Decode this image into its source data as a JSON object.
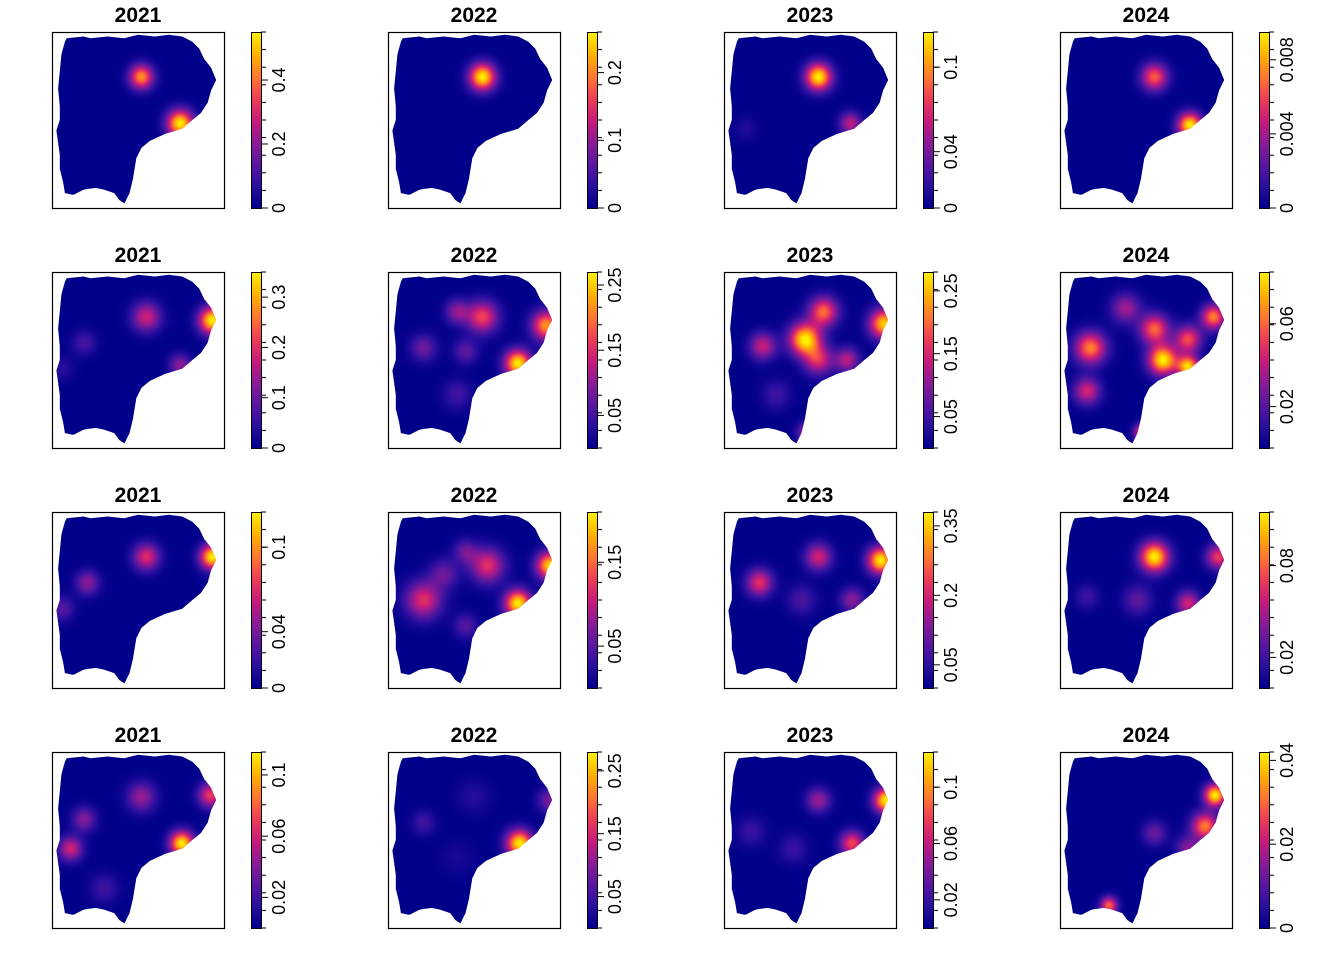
{
  "chart_data": {
    "type": "heatmap",
    "layout": {
      "rows": 4,
      "cols": 4
    },
    "colormap": [
      "#00008B",
      "#2B0FA0",
      "#5A189E",
      "#8E1A95",
      "#C81C7A",
      "#EF3F55",
      "#FF7A2E",
      "#FFB300",
      "#FFF000"
    ],
    "panels": [
      {
        "title": "2021",
        "max": 0.55,
        "ticks": [
          {
            "v": 0,
            "t": "0"
          },
          {
            "v": 0.2,
            "t": "0.2"
          },
          {
            "v": 0.4,
            "t": "0.4"
          }
        ],
        "hotspots": [
          [
            0.52,
            0.25,
            0.44,
            0.05
          ],
          [
            0.75,
            0.52,
            0.55,
            0.055
          ]
        ]
      },
      {
        "title": "2022",
        "max": 0.26,
        "ticks": [
          {
            "v": 0,
            "t": "0"
          },
          {
            "v": 0.1,
            "t": "0.1"
          },
          {
            "v": 0.2,
            "t": "0.2"
          }
        ],
        "hotspots": [
          [
            0.55,
            0.25,
            0.26,
            0.055
          ]
        ]
      },
      {
        "title": "2023",
        "max": 0.125,
        "ticks": [
          {
            "v": 0,
            "t": "0"
          },
          {
            "v": 0.04,
            "t": "0.04"
          },
          {
            "v": 0.1,
            "t": "0.1"
          }
        ],
        "hotspots": [
          [
            0.55,
            0.25,
            0.125,
            0.055
          ],
          [
            0.74,
            0.52,
            0.06,
            0.045
          ],
          [
            0.12,
            0.55,
            0.012,
            0.05
          ]
        ]
      },
      {
        "title": "2024",
        "max": 0.0095,
        "ticks": [
          {
            "v": 0,
            "t": "0"
          },
          {
            "v": 0.004,
            "t": "0.004"
          },
          {
            "v": 0.008,
            "t": "0.008"
          }
        ],
        "hotspots": [
          [
            0.55,
            0.25,
            0.0065,
            0.055
          ],
          [
            0.76,
            0.53,
            0.0095,
            0.05
          ]
        ]
      },
      {
        "title": "2021",
        "max": 0.35,
        "ticks": [
          {
            "v": 0,
            "t": "0"
          },
          {
            "v": 0.1,
            "t": "0.1"
          },
          {
            "v": 0.2,
            "t": "0.2"
          },
          {
            "v": 0.3,
            "t": "0.3"
          }
        ],
        "hotspots": [
          [
            0.55,
            0.25,
            0.18,
            0.06
          ],
          [
            0.94,
            0.27,
            0.35,
            0.055
          ],
          [
            0.75,
            0.53,
            0.13,
            0.045
          ],
          [
            0.18,
            0.4,
            0.07,
            0.05
          ],
          [
            0.05,
            0.55,
            0.04,
            0.05
          ]
        ]
      },
      {
        "title": "2022",
        "max": 0.27,
        "ticks": [
          {
            "v": 0.05,
            "t": "0.05"
          },
          {
            "v": 0.15,
            "t": "0.15"
          },
          {
            "v": 0.25,
            "t": "0.25"
          }
        ],
        "hotspots": [
          [
            0.55,
            0.25,
            0.17,
            0.065
          ],
          [
            0.4,
            0.22,
            0.1,
            0.05
          ],
          [
            0.93,
            0.3,
            0.22,
            0.06
          ],
          [
            0.76,
            0.52,
            0.27,
            0.055
          ],
          [
            0.2,
            0.43,
            0.08,
            0.055
          ],
          [
            0.45,
            0.45,
            0.07,
            0.05
          ],
          [
            0.4,
            0.7,
            0.05,
            0.06
          ]
        ]
      },
      {
        "title": "2023",
        "max": 0.28,
        "ticks": [
          {
            "v": 0.05,
            "t": "0.05"
          },
          {
            "v": 0.15,
            "t": "0.15"
          },
          {
            "v": 0.25,
            "t": "0.25"
          }
        ],
        "hotspots": [
          [
            0.47,
            0.38,
            0.28,
            0.065
          ],
          [
            0.58,
            0.22,
            0.2,
            0.06
          ],
          [
            0.55,
            0.5,
            0.15,
            0.06
          ],
          [
            0.94,
            0.29,
            0.26,
            0.06
          ],
          [
            0.72,
            0.5,
            0.13,
            0.05
          ],
          [
            0.22,
            0.42,
            0.14,
            0.055
          ],
          [
            0.48,
            0.92,
            0.12,
            0.04
          ],
          [
            0.3,
            0.7,
            0.05,
            0.06
          ]
        ]
      },
      {
        "title": "2024",
        "max": 0.085,
        "ticks": [
          {
            "v": 0.02,
            "t": "0.02"
          },
          {
            "v": 0.06,
            "t": "0.06"
          }
        ],
        "hotspots": [
          [
            0.6,
            0.5,
            0.085,
            0.06
          ],
          [
            0.75,
            0.54,
            0.08,
            0.045
          ],
          [
            0.55,
            0.32,
            0.06,
            0.06
          ],
          [
            0.75,
            0.38,
            0.055,
            0.055
          ],
          [
            0.9,
            0.25,
            0.065,
            0.05
          ],
          [
            0.17,
            0.43,
            0.065,
            0.065
          ],
          [
            0.15,
            0.68,
            0.045,
            0.055
          ],
          [
            0.38,
            0.2,
            0.035,
            0.06
          ],
          [
            0.48,
            0.92,
            0.06,
            0.035
          ]
        ]
      },
      {
        "title": "2021",
        "max": 0.125,
        "ticks": [
          {
            "v": 0,
            "t": "0"
          },
          {
            "v": 0.04,
            "t": "0.04"
          },
          {
            "v": 0.1,
            "t": "0.1"
          }
        ],
        "hotspots": [
          [
            0.55,
            0.25,
            0.07,
            0.055
          ],
          [
            0.94,
            0.25,
            0.125,
            0.05
          ],
          [
            0.2,
            0.4,
            0.045,
            0.05
          ],
          [
            0.05,
            0.55,
            0.03,
            0.05
          ]
        ]
      },
      {
        "title": "2022",
        "max": 0.21,
        "ticks": [
          {
            "v": 0.05,
            "t": "0.05"
          },
          {
            "v": 0.15,
            "t": "0.15"
          }
        ],
        "hotspots": [
          [
            0.2,
            0.5,
            0.12,
            0.075
          ],
          [
            0.58,
            0.3,
            0.12,
            0.07
          ],
          [
            0.45,
            0.22,
            0.06,
            0.05
          ],
          [
            0.95,
            0.3,
            0.2,
            0.055
          ],
          [
            0.76,
            0.52,
            0.21,
            0.055
          ],
          [
            0.32,
            0.35,
            0.06,
            0.06
          ],
          [
            0.45,
            0.65,
            0.05,
            0.05
          ]
        ]
      },
      {
        "title": "2023",
        "max": 0.38,
        "ticks": [
          {
            "v": 0.05,
            "t": "0.05"
          },
          {
            "v": 0.2,
            "t": "0.2"
          },
          {
            "v": 0.35,
            "t": "0.35"
          }
        ],
        "hotspots": [
          [
            0.2,
            0.4,
            0.22,
            0.055
          ],
          [
            0.55,
            0.25,
            0.2,
            0.055
          ],
          [
            0.92,
            0.27,
            0.38,
            0.055
          ],
          [
            0.75,
            0.5,
            0.14,
            0.05
          ],
          [
            0.45,
            0.5,
            0.08,
            0.06
          ]
        ]
      },
      {
        "title": "2024",
        "max": 0.115,
        "ticks": [
          {
            "v": 0.02,
            "t": "0.02"
          },
          {
            "v": 0.08,
            "t": "0.08"
          }
        ],
        "hotspots": [
          [
            0.55,
            0.25,
            0.115,
            0.06
          ],
          [
            0.93,
            0.25,
            0.07,
            0.05
          ],
          [
            0.75,
            0.52,
            0.06,
            0.05
          ],
          [
            0.45,
            0.5,
            0.03,
            0.06
          ],
          [
            0.15,
            0.48,
            0.02,
            0.05
          ]
        ]
      },
      {
        "title": "2021",
        "max": 0.115,
        "ticks": [
          {
            "v": 0.02,
            "t": "0.02"
          },
          {
            "v": 0.06,
            "t": "0.06"
          },
          {
            "v": 0.1,
            "t": "0.1"
          }
        ],
        "hotspots": [
          [
            0.1,
            0.55,
            0.06,
            0.05
          ],
          [
            0.18,
            0.38,
            0.04,
            0.05
          ],
          [
            0.52,
            0.25,
            0.045,
            0.06
          ],
          [
            0.93,
            0.24,
            0.07,
            0.05
          ],
          [
            0.76,
            0.52,
            0.115,
            0.05
          ],
          [
            0.3,
            0.78,
            0.02,
            0.06
          ]
        ]
      },
      {
        "title": "2022",
        "max": 0.28,
        "ticks": [
          {
            "v": 0.05,
            "t": "0.05"
          },
          {
            "v": 0.15,
            "t": "0.15"
          },
          {
            "v": 0.25,
            "t": "0.25"
          }
        ],
        "hotspots": [
          [
            0.77,
            0.52,
            0.28,
            0.055
          ],
          [
            0.95,
            0.27,
            0.09,
            0.05
          ],
          [
            0.2,
            0.4,
            0.05,
            0.05
          ],
          [
            0.5,
            0.25,
            0.03,
            0.07
          ],
          [
            0.4,
            0.6,
            0.02,
            0.07
          ]
        ]
      },
      {
        "title": "2023",
        "max": 0.125,
        "ticks": [
          {
            "v": 0.02,
            "t": "0.02"
          },
          {
            "v": 0.06,
            "t": "0.06"
          },
          {
            "v": 0.1,
            "t": "0.1"
          }
        ],
        "hotspots": [
          [
            0.95,
            0.27,
            0.125,
            0.05
          ],
          [
            0.75,
            0.52,
            0.08,
            0.05
          ],
          [
            0.55,
            0.27,
            0.05,
            0.05
          ],
          [
            0.15,
            0.45,
            0.02,
            0.06
          ],
          [
            0.4,
            0.55,
            0.02,
            0.06
          ]
        ]
      },
      {
        "title": "2024",
        "max": 0.042,
        "ticks": [
          {
            "v": 0,
            "t": "0"
          },
          {
            "v": 0.02,
            "t": "0.02"
          },
          {
            "v": 0.04,
            "t": "0.04"
          }
        ],
        "hotspots": [
          [
            0.91,
            0.24,
            0.042,
            0.045
          ],
          [
            0.85,
            0.42,
            0.032,
            0.055
          ],
          [
            0.55,
            0.46,
            0.012,
            0.05
          ],
          [
            0.75,
            0.55,
            0.015,
            0.05
          ],
          [
            0.28,
            0.88,
            0.03,
            0.035
          ]
        ]
      }
    ]
  }
}
